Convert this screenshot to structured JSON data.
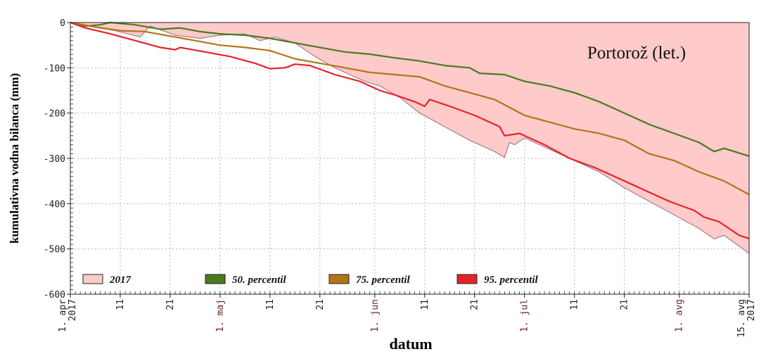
{
  "chart_data": {
    "type": "area",
    "ylabel": "kumulativna vodna bilanca (mm)",
    "xlabel": "datum",
    "annotation": "Portorož (let.)",
    "ylim": [
      -600,
      0
    ],
    "xlim": [
      "2017-04-01",
      "2017-08-15"
    ],
    "grid": true,
    "legend_position": "bottom-left",
    "y_ticks": [
      0,
      -100,
      -200,
      -300,
      -400,
      -500,
      -600
    ],
    "y_tick_labels": [
      "0",
      "-100",
      "-200",
      "-300",
      "-400",
      "-500",
      "-600"
    ],
    "x_ticks": [
      {
        "date": "2017-04-01",
        "label": "1. apr",
        "sublabel": "2017",
        "month": false
      },
      {
        "date": "2017-04-11",
        "label": "11",
        "sublabel": "",
        "month": false
      },
      {
        "date": "2017-04-21",
        "label": "21",
        "sublabel": "",
        "month": false
      },
      {
        "date": "2017-05-01",
        "label": "1. maj",
        "sublabel": "",
        "month": true
      },
      {
        "date": "2017-05-11",
        "label": "11",
        "sublabel": "",
        "month": false
      },
      {
        "date": "2017-05-21",
        "label": "21",
        "sublabel": "",
        "month": false
      },
      {
        "date": "2017-06-01",
        "label": "1. jun",
        "sublabel": "",
        "month": true
      },
      {
        "date": "2017-06-11",
        "label": "11",
        "sublabel": "",
        "month": false
      },
      {
        "date": "2017-06-21",
        "label": "21",
        "sublabel": "",
        "month": false
      },
      {
        "date": "2017-07-01",
        "label": "1. jul",
        "sublabel": "",
        "month": true
      },
      {
        "date": "2017-07-11",
        "label": "11",
        "sublabel": "",
        "month": false
      },
      {
        "date": "2017-07-21",
        "label": "21",
        "sublabel": "",
        "month": false
      },
      {
        "date": "2017-08-01",
        "label": "1. avg",
        "sublabel": "",
        "month": true
      },
      {
        "date": "2017-08-15",
        "label": "15. avg",
        "sublabel": "2017",
        "month": false
      }
    ],
    "series": [
      {
        "name": "2017",
        "kind": "area",
        "fill": "#ffcaca",
        "stroke": "#a08090",
        "points": [
          [
            "2017-04-01",
            0
          ],
          [
            "2017-04-05",
            -8
          ],
          [
            "2017-04-10",
            -18
          ],
          [
            "2017-04-15",
            -32
          ],
          [
            "2017-04-17",
            -8
          ],
          [
            "2017-04-22",
            -28
          ],
          [
            "2017-04-27",
            -35
          ],
          [
            "2017-05-01",
            -28
          ],
          [
            "2017-05-06",
            -25
          ],
          [
            "2017-05-09",
            -40
          ],
          [
            "2017-05-12",
            -32
          ],
          [
            "2017-05-16",
            -45
          ],
          [
            "2017-05-20",
            -75
          ],
          [
            "2017-05-24",
            -100
          ],
          [
            "2017-05-27",
            -115
          ],
          [
            "2017-05-30",
            -130
          ],
          [
            "2017-06-02",
            -140
          ],
          [
            "2017-06-06",
            -165
          ],
          [
            "2017-06-10",
            -200
          ],
          [
            "2017-06-15",
            -230
          ],
          [
            "2017-06-20",
            -260
          ],
          [
            "2017-06-25",
            -285
          ],
          [
            "2017-06-27",
            -298
          ],
          [
            "2017-06-28",
            -265
          ],
          [
            "2017-06-29",
            -270
          ],
          [
            "2017-07-01",
            -255
          ],
          [
            "2017-07-06",
            -280
          ],
          [
            "2017-07-11",
            -305
          ],
          [
            "2017-07-16",
            -330
          ],
          [
            "2017-07-21",
            -365
          ],
          [
            "2017-07-26",
            -395
          ],
          [
            "2017-07-31",
            -425
          ],
          [
            "2017-08-05",
            -455
          ],
          [
            "2017-08-08",
            -478
          ],
          [
            "2017-08-10",
            -470
          ],
          [
            "2017-08-15",
            -510
          ]
        ]
      },
      {
        "name": "50. percentil",
        "kind": "line",
        "color": "#4a7a1e",
        "points": [
          [
            "2017-04-01",
            0
          ],
          [
            "2017-04-04",
            -8
          ],
          [
            "2017-04-07",
            -5
          ],
          [
            "2017-04-09",
            0
          ],
          [
            "2017-04-14",
            -5
          ],
          [
            "2017-04-19",
            -15
          ],
          [
            "2017-04-23",
            -12
          ],
          [
            "2017-04-27",
            -20
          ],
          [
            "2017-05-01",
            -25
          ],
          [
            "2017-05-06",
            -28
          ],
          [
            "2017-05-11",
            -35
          ],
          [
            "2017-05-16",
            -45
          ],
          [
            "2017-05-21",
            -55
          ],
          [
            "2017-05-26",
            -65
          ],
          [
            "2017-05-31",
            -70
          ],
          [
            "2017-06-05",
            -78
          ],
          [
            "2017-06-10",
            -85
          ],
          [
            "2017-06-15",
            -95
          ],
          [
            "2017-06-20",
            -100
          ],
          [
            "2017-06-22",
            -112
          ],
          [
            "2017-06-27",
            -115
          ],
          [
            "2017-07-01",
            -130
          ],
          [
            "2017-07-06",
            -140
          ],
          [
            "2017-07-11",
            -155
          ],
          [
            "2017-07-16",
            -175
          ],
          [
            "2017-07-21",
            -200
          ],
          [
            "2017-07-26",
            -225
          ],
          [
            "2017-07-31",
            -245
          ],
          [
            "2017-08-05",
            -265
          ],
          [
            "2017-08-08",
            -285
          ],
          [
            "2017-08-10",
            -278
          ],
          [
            "2017-08-15",
            -295
          ]
        ]
      },
      {
        "name": "75. percentil",
        "kind": "line",
        "color": "#b37418",
        "points": [
          [
            "2017-04-01",
            0
          ],
          [
            "2017-04-06",
            -10
          ],
          [
            "2017-04-11",
            -18
          ],
          [
            "2017-04-16",
            -20
          ],
          [
            "2017-04-21",
            -30
          ],
          [
            "2017-04-26",
            -40
          ],
          [
            "2017-05-01",
            -50
          ],
          [
            "2017-05-06",
            -55
          ],
          [
            "2017-05-11",
            -62
          ],
          [
            "2017-05-16",
            -80
          ],
          [
            "2017-05-21",
            -90
          ],
          [
            "2017-05-26",
            -100
          ],
          [
            "2017-05-31",
            -110
          ],
          [
            "2017-06-05",
            -115
          ],
          [
            "2017-06-10",
            -120
          ],
          [
            "2017-06-15",
            -140
          ],
          [
            "2017-06-20",
            -155
          ],
          [
            "2017-06-25",
            -170
          ],
          [
            "2017-07-01",
            -205
          ],
          [
            "2017-07-06",
            -220
          ],
          [
            "2017-07-11",
            -235
          ],
          [
            "2017-07-16",
            -245
          ],
          [
            "2017-07-21",
            -260
          ],
          [
            "2017-07-26",
            -290
          ],
          [
            "2017-07-31",
            -305
          ],
          [
            "2017-08-05",
            -330
          ],
          [
            "2017-08-10",
            -350
          ],
          [
            "2017-08-15",
            -380
          ]
        ]
      },
      {
        "name": "95. percentil",
        "kind": "line",
        "color": "#e8222a",
        "points": [
          [
            "2017-04-01",
            0
          ],
          [
            "2017-04-04",
            -12
          ],
          [
            "2017-04-09",
            -25
          ],
          [
            "2017-04-14",
            -40
          ],
          [
            "2017-04-19",
            -55
          ],
          [
            "2017-04-22",
            -60
          ],
          [
            "2017-04-23",
            -55
          ],
          [
            "2017-04-28",
            -65
          ],
          [
            "2017-05-03",
            -75
          ],
          [
            "2017-05-08",
            -90
          ],
          [
            "2017-05-11",
            -102
          ],
          [
            "2017-05-14",
            -100
          ],
          [
            "2017-05-16",
            -92
          ],
          [
            "2017-05-19",
            -95
          ],
          [
            "2017-05-24",
            -115
          ],
          [
            "2017-05-29",
            -130
          ],
          [
            "2017-06-02",
            -150
          ],
          [
            "2017-06-05",
            -160
          ],
          [
            "2017-06-09",
            -175
          ],
          [
            "2017-06-11",
            -185
          ],
          [
            "2017-06-12",
            -170
          ],
          [
            "2017-06-16",
            -185
          ],
          [
            "2017-06-21",
            -205
          ],
          [
            "2017-06-24",
            -220
          ],
          [
            "2017-06-26",
            -230
          ],
          [
            "2017-06-27",
            -250
          ],
          [
            "2017-06-30",
            -245
          ],
          [
            "2017-07-05",
            -270
          ],
          [
            "2017-07-10",
            -300
          ],
          [
            "2017-07-15",
            -320
          ],
          [
            "2017-07-20",
            -345
          ],
          [
            "2017-07-25",
            -370
          ],
          [
            "2017-07-30",
            -395
          ],
          [
            "2017-08-04",
            -415
          ],
          [
            "2017-08-06",
            -430
          ],
          [
            "2017-08-09",
            -440
          ],
          [
            "2017-08-13",
            -470
          ],
          [
            "2017-08-15",
            -477
          ]
        ]
      }
    ]
  }
}
